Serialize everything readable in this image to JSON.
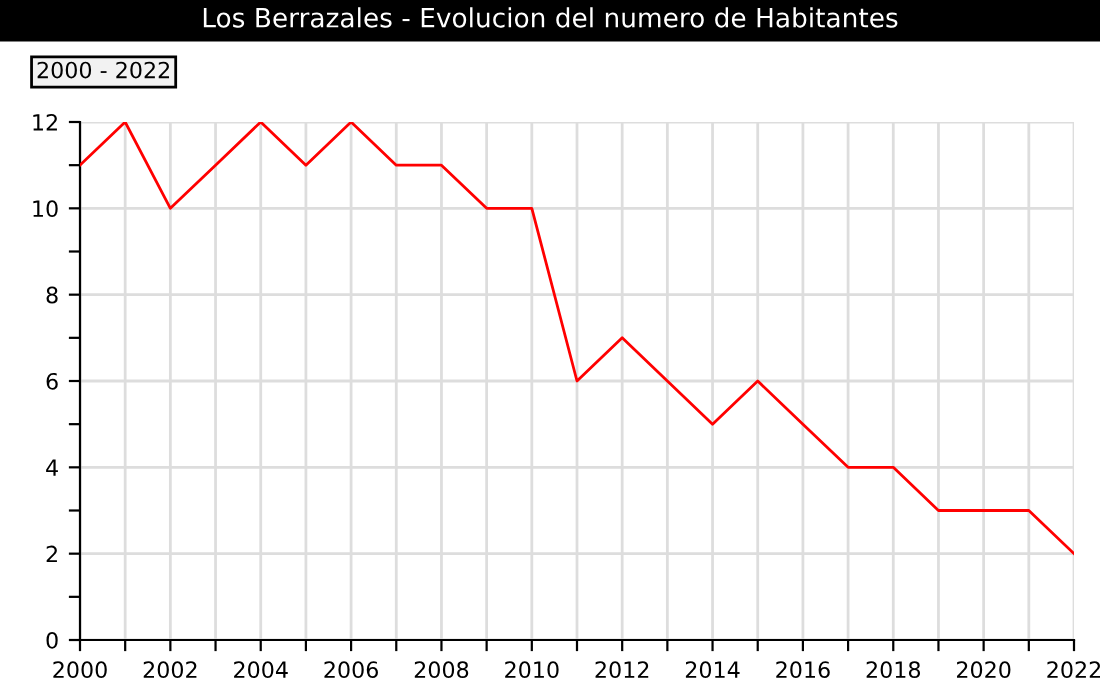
{
  "chart_data": {
    "type": "line",
    "title": "Los Berrazales - Evolucion del numero de Habitantes",
    "annotations": [
      "2000 - 2022"
    ],
    "x": [
      2000,
      2001,
      2002,
      2003,
      2004,
      2005,
      2006,
      2007,
      2008,
      2009,
      2010,
      2011,
      2012,
      2013,
      2014,
      2015,
      2016,
      2017,
      2018,
      2019,
      2020,
      2021,
      2022
    ],
    "series": [
      {
        "color": "#ff0000",
        "values": [
          11,
          12,
          10,
          11,
          12,
          11,
          12,
          11,
          11,
          10,
          10,
          6,
          7,
          6,
          5,
          6,
          5,
          4,
          4,
          3,
          3,
          3,
          2
        ]
      }
    ],
    "xlim": [
      2000,
      2022
    ],
    "ylim": [
      0,
      12
    ],
    "xticks": [
      2000,
      {
        "value": 2001,
        "label": null
      },
      2002,
      {
        "value": 2003,
        "label": null
      },
      2004,
      {
        "value": 2005,
        "label": null
      },
      2006,
      {
        "value": 2007,
        "label": null
      },
      2008,
      {
        "value": 2009,
        "label": null
      },
      2010,
      {
        "value": 2011,
        "label": null
      },
      2012,
      {
        "value": 2013,
        "label": null
      },
      2014,
      {
        "value": 2015,
        "label": null
      },
      2016,
      {
        "value": 2017,
        "label": null
      },
      2018,
      {
        "value": 2019,
        "label": null
      },
      2020,
      {
        "value": 2021,
        "label": null
      },
      2022
    ],
    "yticks": [
      0,
      {
        "value": 1,
        "label": null
      },
      2,
      {
        "value": 3,
        "label": null
      },
      4,
      {
        "value": 5,
        "label": null
      },
      6,
      {
        "value": 7,
        "label": null
      },
      8,
      {
        "value": 9,
        "label": null
      },
      10,
      {
        "value": 11,
        "label": null
      },
      12
    ],
    "grid": true,
    "marker": "none",
    "line_style": "solid"
  }
}
